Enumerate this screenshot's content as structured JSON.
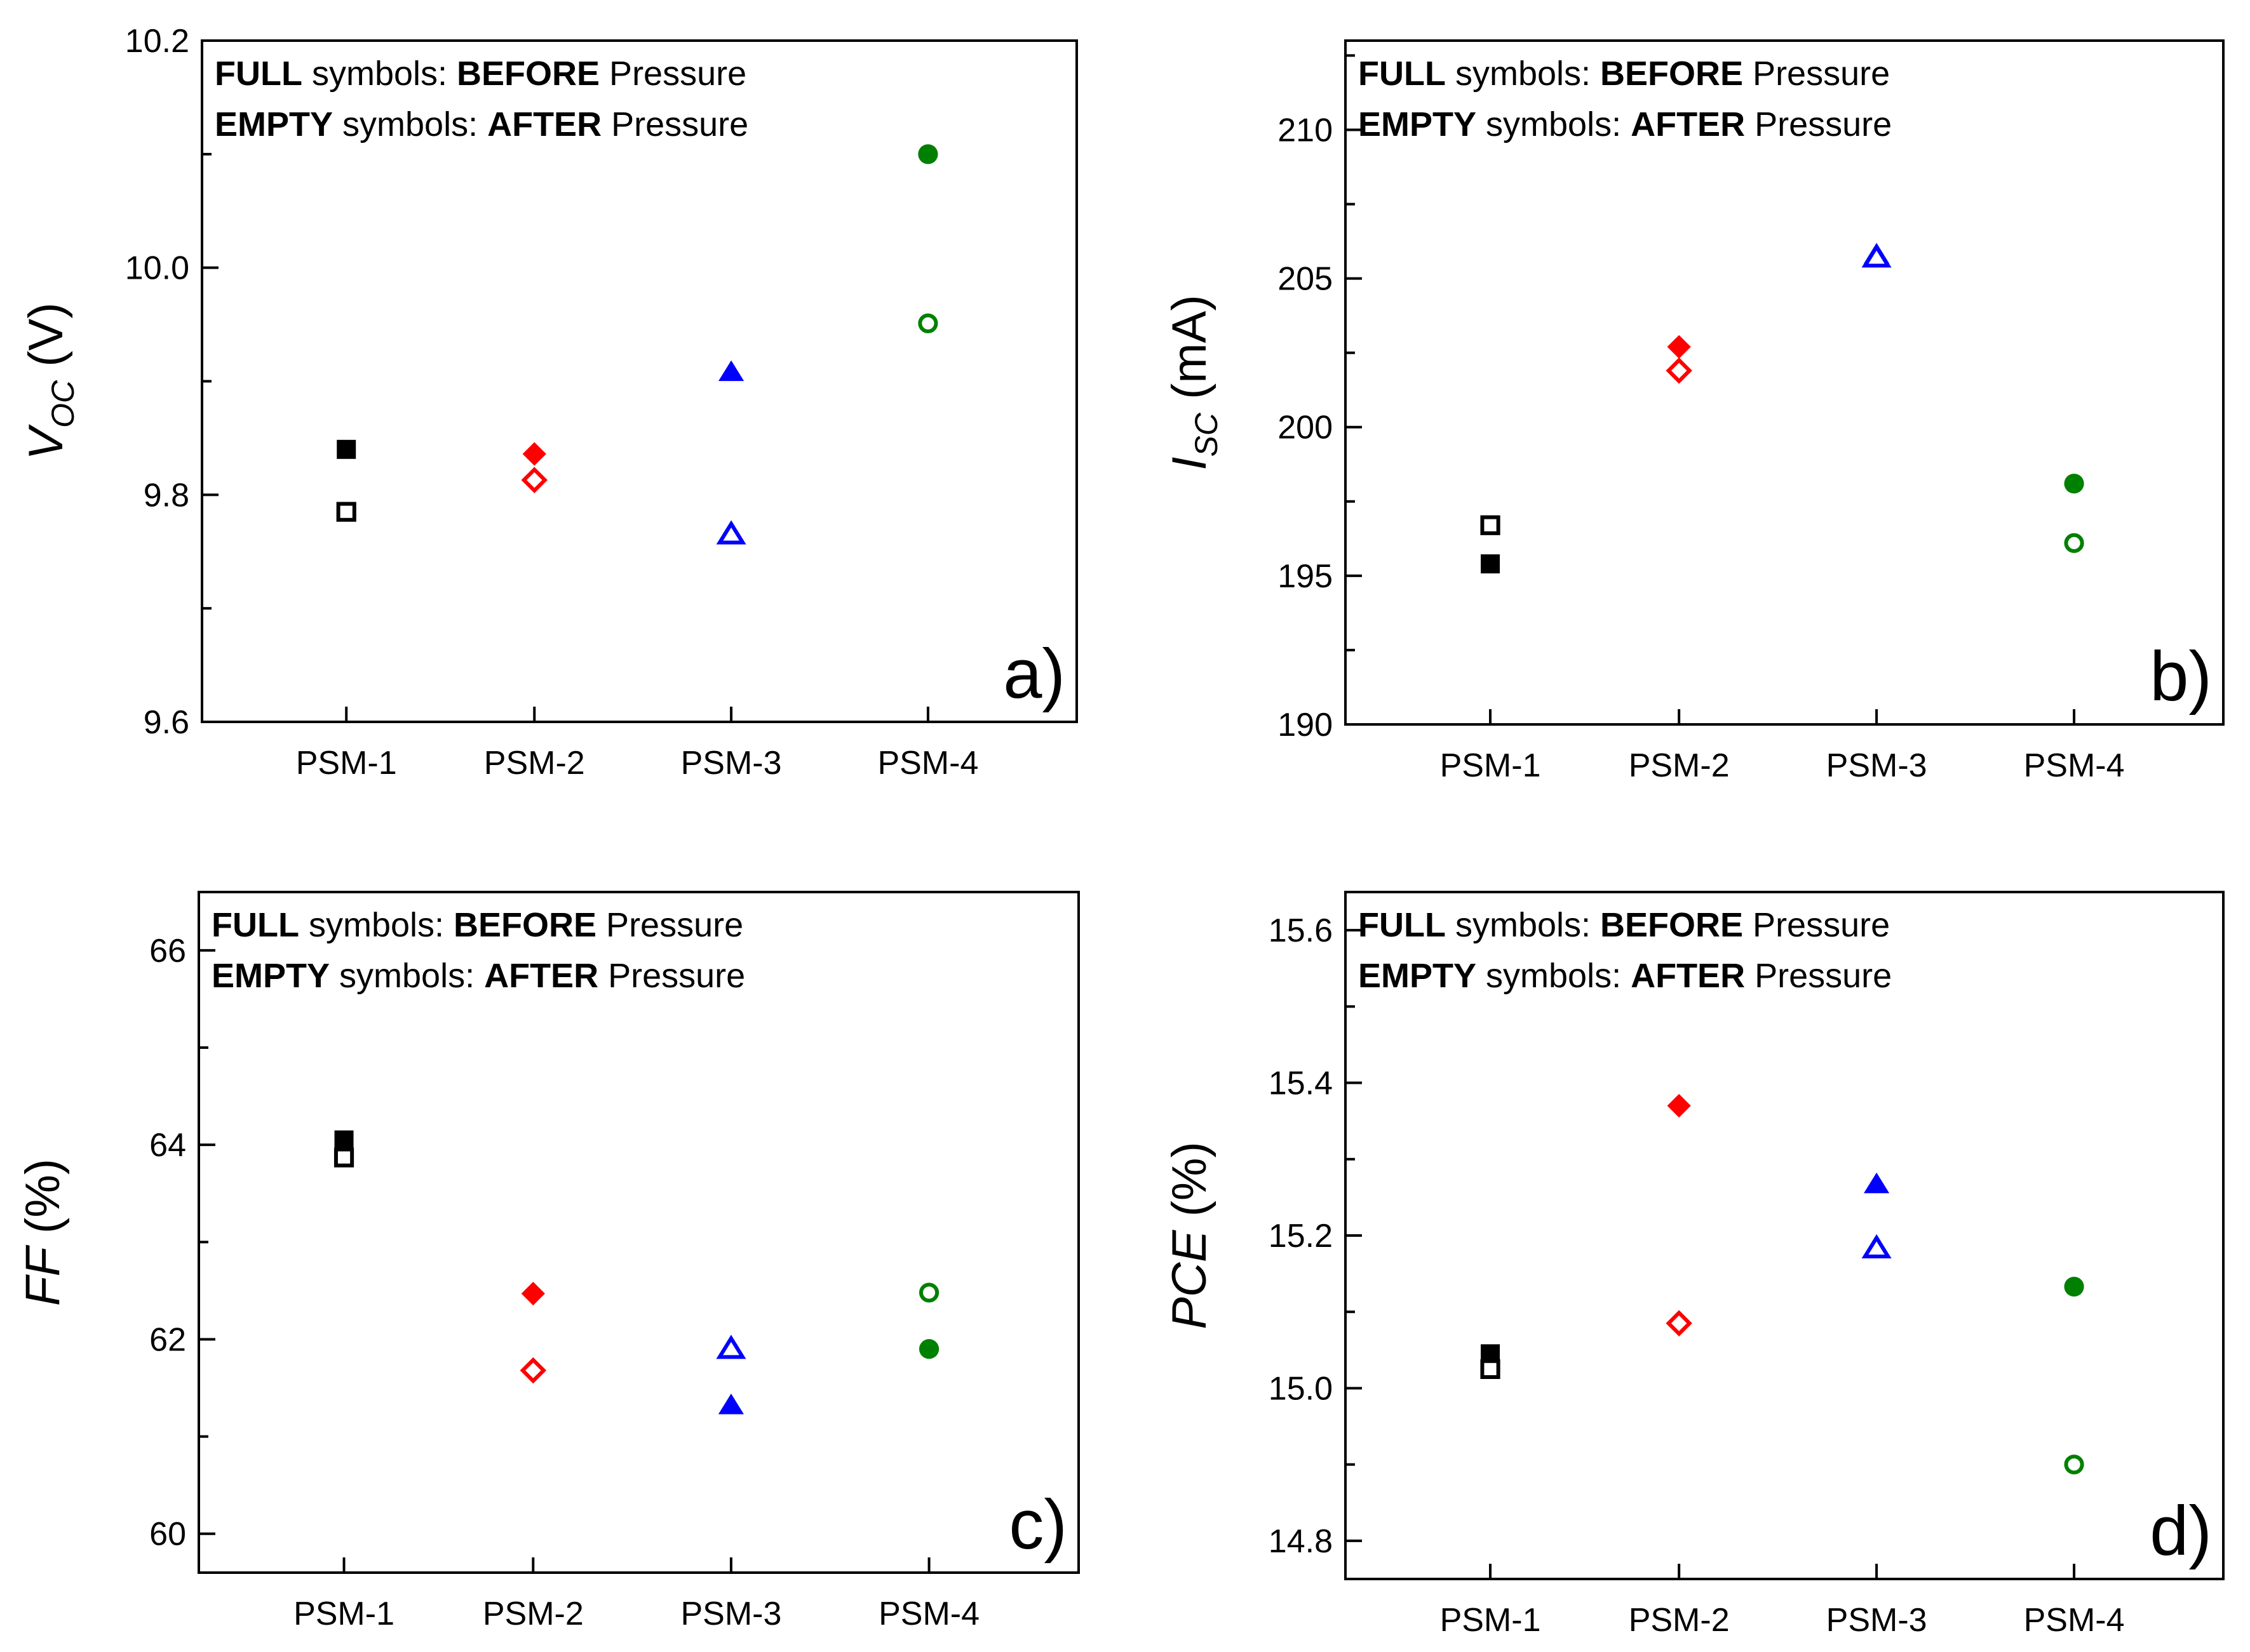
{
  "chart_data": [
    {
      "id": "a",
      "type": "scatter",
      "panel_label": "a)",
      "ylabel": {
        "main": "V",
        "sub": "OC",
        "unit": " (V)"
      },
      "categories": [
        "PSM-1",
        "PSM-2",
        "PSM-3",
        "PSM-4"
      ],
      "ylim": [
        9.6,
        10.2
      ],
      "yticks": [
        9.6,
        9.8,
        10.0,
        10.2
      ],
      "yticklabels": [
        "9.6",
        "9.8",
        "10.0",
        "10.2"
      ],
      "legend": {
        "line1": {
          "w1": "FULL",
          "w2": " symbols: ",
          "w3": "BEFORE",
          "w4": " Pressure"
        },
        "line2": {
          "w1": "EMPTY",
          "w2": " symbols: ",
          "w3": "AFTER",
          "w4": " Pressure"
        }
      },
      "series": [
        {
          "name": "BEFORE Pressure",
          "fill": "full",
          "values": [
            9.84,
            9.836,
            9.908,
            10.1
          ]
        },
        {
          "name": "AFTER Pressure",
          "fill": "empty",
          "values": [
            9.785,
            9.813,
            9.765,
            9.951
          ]
        }
      ]
    },
    {
      "id": "b",
      "type": "scatter",
      "panel_label": "b)",
      "ylabel": {
        "main": "I",
        "sub": "SC",
        "unit": " (mA)"
      },
      "categories": [
        "PSM-1",
        "PSM-2",
        "PSM-3",
        "PSM-4"
      ],
      "ylim": [
        190,
        213
      ],
      "yticks": [
        190,
        195,
        200,
        205,
        210
      ],
      "yticklabels": [
        "190",
        "195",
        "200",
        "205",
        "210"
      ],
      "legend": {
        "line1": {
          "w1": "FULL",
          "w2": " symbols: ",
          "w3": "BEFORE",
          "w4": " Pressure"
        },
        "line2": {
          "w1": "EMPTY",
          "w2": " symbols: ",
          "w3": "AFTER",
          "w4": " Pressure"
        }
      },
      "series": [
        {
          "name": "BEFORE Pressure",
          "fill": "full",
          "values": [
            195.4,
            202.7,
            205.8,
            198.1
          ]
        },
        {
          "name": "AFTER Pressure",
          "fill": "empty",
          "values": [
            196.7,
            201.9,
            205.7,
            196.1
          ]
        }
      ]
    },
    {
      "id": "c",
      "type": "scatter",
      "panel_label": "c)",
      "ylabel": {
        "main": "FF",
        "sub": "",
        "unit": " (%)"
      },
      "categories": [
        "PSM-1",
        "PSM-2",
        "PSM-3",
        "PSM-4"
      ],
      "ylim": [
        59.6,
        66.6
      ],
      "yticks": [
        60,
        62,
        64,
        66
      ],
      "yticklabels": [
        "60",
        "62",
        "64",
        "66"
      ],
      "legend": {
        "line1": {
          "w1": "FULL",
          "w2": " symbols: ",
          "w3": "BEFORE",
          "w4": " Pressure"
        },
        "line2": {
          "w1": "EMPTY",
          "w2": " symbols: ",
          "w3": "AFTER",
          "w4": " Pressure"
        }
      },
      "series": [
        {
          "name": "BEFORE Pressure",
          "fill": "full",
          "values": [
            64.05,
            62.47,
            61.32,
            61.9
          ]
        },
        {
          "name": "AFTER Pressure",
          "fill": "empty",
          "values": [
            63.87,
            61.68,
            61.9,
            62.48
          ]
        }
      ]
    },
    {
      "id": "d",
      "type": "scatter",
      "panel_label": "d)",
      "ylabel": {
        "main": "PCE",
        "sub": "",
        "unit": " (%)"
      },
      "categories": [
        "PSM-1",
        "PSM-2",
        "PSM-3",
        "PSM-4"
      ],
      "ylim": [
        14.75,
        15.65
      ],
      "yticks": [
        14.8,
        15.0,
        15.2,
        15.4,
        15.6
      ],
      "yticklabels": [
        "14.8",
        "15.0",
        "15.2",
        "15.4",
        "15.6"
      ],
      "legend": {
        "line1": {
          "w1": "FULL",
          "w2": " symbols: ",
          "w3": "BEFORE",
          "w4": " Pressure"
        },
        "line2": {
          "w1": "EMPTY",
          "w2": " symbols: ",
          "w3": "AFTER",
          "w4": " Pressure"
        }
      },
      "series": [
        {
          "name": "BEFORE Pressure",
          "fill": "full",
          "values": [
            15.045,
            15.37,
            15.267,
            15.133
          ]
        },
        {
          "name": "AFTER Pressure",
          "fill": "empty",
          "values": [
            15.025,
            15.085,
            15.183,
            14.9
          ]
        }
      ]
    }
  ],
  "colors": {
    "PSM-1": "#000000",
    "PSM-2": "#ff0000",
    "PSM-3": "#0000ff",
    "PSM-4": "#008000"
  },
  "markers": {
    "PSM-1": "square",
    "PSM-2": "diamond",
    "PSM-3": "triangle",
    "PSM-4": "circle"
  }
}
